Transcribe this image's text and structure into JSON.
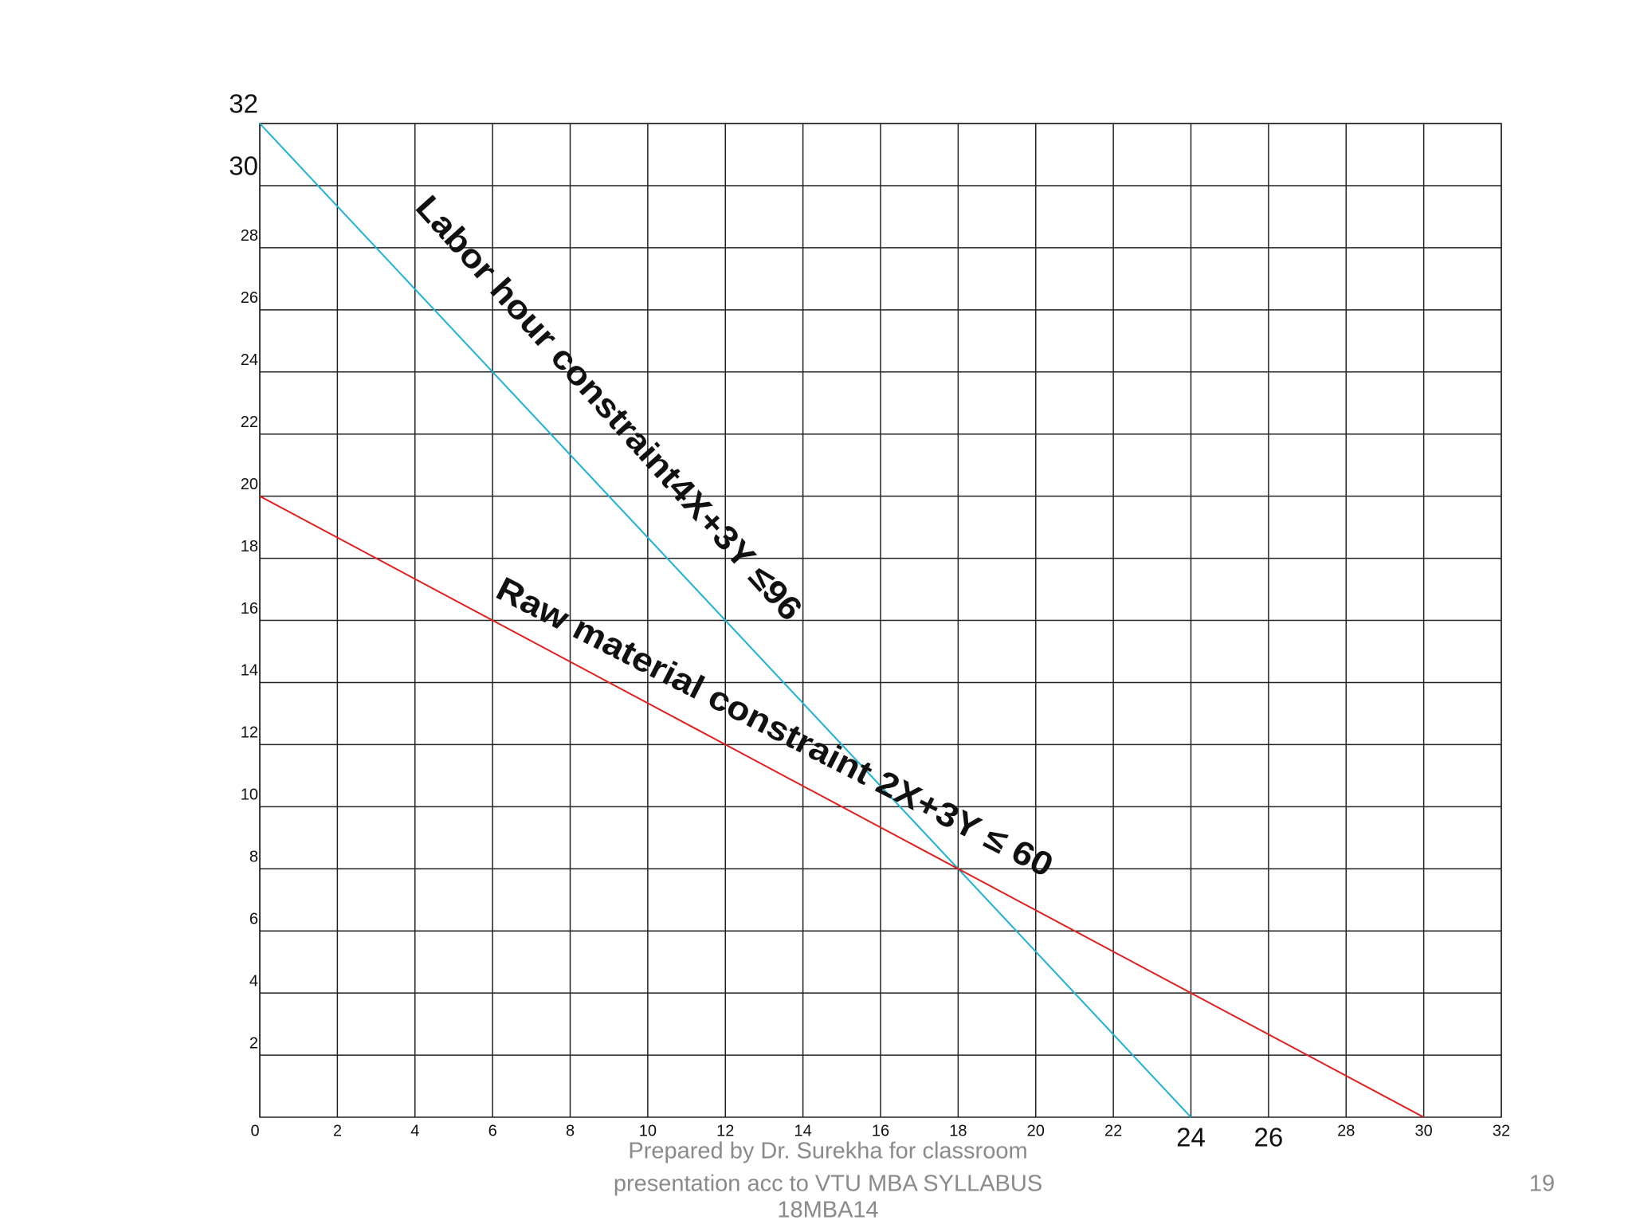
{
  "chart_data": {
    "type": "line",
    "series": [
      {
        "name": "Labor hour constraint4X+3Y ≤96",
        "color": "#1fb0d6",
        "x": [
          0,
          24
        ],
        "values": [
          32,
          0
        ]
      },
      {
        "name": "Raw material  constraint 2X+3Y ≤ 60",
        "color": "#e0201f",
        "x": [
          0,
          30
        ],
        "values": [
          20,
          0
        ]
      }
    ],
    "xlim": [
      0,
      32
    ],
    "ylim": [
      0,
      32
    ],
    "xticks": [
      0,
      2,
      4,
      6,
      8,
      10,
      12,
      14,
      16,
      18,
      20,
      22,
      24,
      26,
      28,
      30,
      32
    ],
    "yticks": [
      2,
      4,
      6,
      8,
      10,
      12,
      14,
      16,
      18,
      20,
      22,
      24,
      26,
      28,
      30,
      32
    ],
    "grid": true
  },
  "footer": {
    "lines": [
      "Prepared by Dr. Surekha for classroom",
      "presentation acc to VTU MBA SYLLABUS",
      "18MBA14"
    ],
    "page_number": "19"
  }
}
